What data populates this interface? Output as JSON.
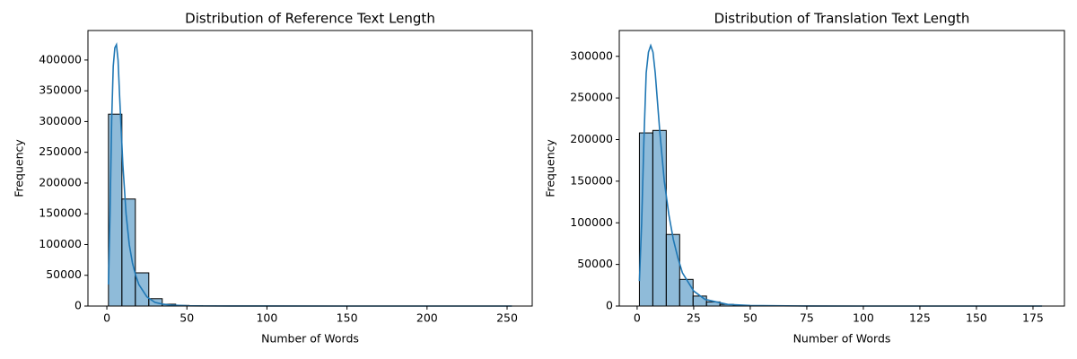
{
  "chart_data": [
    {
      "type": "histogram",
      "title": "Distribution of Reference Text Length",
      "xlabel": "Number of Words",
      "ylabel": "Frequency",
      "color": "#1f77b4",
      "bins": [
        1,
        9.4,
        17.8,
        26.2,
        34.6,
        43,
        51.4,
        59.8,
        68.2,
        76.6,
        85,
        93.4,
        101.8,
        110.2,
        118.6,
        127,
        135.4,
        143.8,
        152.2,
        160.6,
        169,
        177.4,
        185.8,
        194.2,
        202.6,
        211,
        219.4,
        227.8,
        236.2,
        244.6,
        253
      ],
      "values": [
        312000,
        174000,
        54000,
        12000,
        3000,
        1000,
        400,
        150,
        80,
        40,
        20,
        10,
        5,
        3,
        2,
        1,
        1,
        0,
        0,
        0,
        0,
        0,
        0,
        0,
        0,
        0,
        0,
        0,
        0,
        1
      ],
      "kde": {
        "x": [
          1,
          2,
          3,
          4,
          5,
          6,
          7,
          8,
          10,
          12,
          14,
          16,
          18,
          20,
          25,
          30,
          35,
          40,
          50,
          60,
          80,
          100,
          150,
          200,
          253
        ],
        "y": [
          35000,
          150000,
          300000,
          390000,
          420000,
          425000,
          400000,
          340000,
          230000,
          150000,
          100000,
          70000,
          50000,
          35000,
          15000,
          6000,
          3000,
          1500,
          500,
          200,
          50,
          20,
          0,
          0,
          0
        ]
      },
      "xlim": [
        -11.8,
        265.7
      ],
      "ylim": [
        0,
        448000
      ],
      "xticks": [
        0,
        50,
        100,
        150,
        200,
        250
      ],
      "yticks": [
        0,
        50000,
        100000,
        150000,
        200000,
        250000,
        300000,
        350000,
        400000
      ]
    },
    {
      "type": "histogram",
      "title": "Distribution of Translation Text Length",
      "xlabel": "Number of Words",
      "ylabel": "Frequency",
      "color": "#1f77b4",
      "bins": [
        1,
        6.93,
        12.87,
        18.8,
        24.73,
        30.67,
        36.6,
        42.53,
        48.47,
        54.4,
        60.33,
        66.27,
        72.2,
        78.13,
        84.07,
        90,
        95.93,
        101.87,
        107.8,
        113.73,
        119.67,
        125.6,
        131.53,
        137.47,
        143.4,
        149.33,
        155.27,
        161.2,
        167.13,
        173.07,
        179
      ],
      "values": [
        208000,
        211000,
        86000,
        32000,
        12000,
        5000,
        2000,
        1000,
        500,
        250,
        120,
        60,
        30,
        15,
        8,
        4,
        2,
        1,
        1,
        0,
        0,
        0,
        0,
        0,
        0,
        0,
        0,
        0,
        0,
        1
      ],
      "kde": {
        "x": [
          1,
          2,
          3,
          4,
          5,
          6,
          7,
          8,
          9,
          10,
          12,
          14,
          16,
          18,
          20,
          25,
          30,
          40,
          50,
          75,
          100,
          150,
          179
        ],
        "y": [
          30000,
          100000,
          200000,
          280000,
          305000,
          313000,
          305000,
          280000,
          245000,
          210000,
          150000,
          110000,
          80000,
          58000,
          40000,
          18000,
          8000,
          2000,
          600,
          50,
          10,
          0,
          0
        ]
      },
      "xlim": [
        -7.9,
        188.9
      ],
      "ylim": [
        0,
        331000
      ],
      "xticks": [
        0,
        25,
        50,
        75,
        100,
        125,
        150,
        175
      ],
      "yticks": [
        0,
        50000,
        100000,
        150000,
        200000,
        250000,
        300000
      ]
    }
  ]
}
